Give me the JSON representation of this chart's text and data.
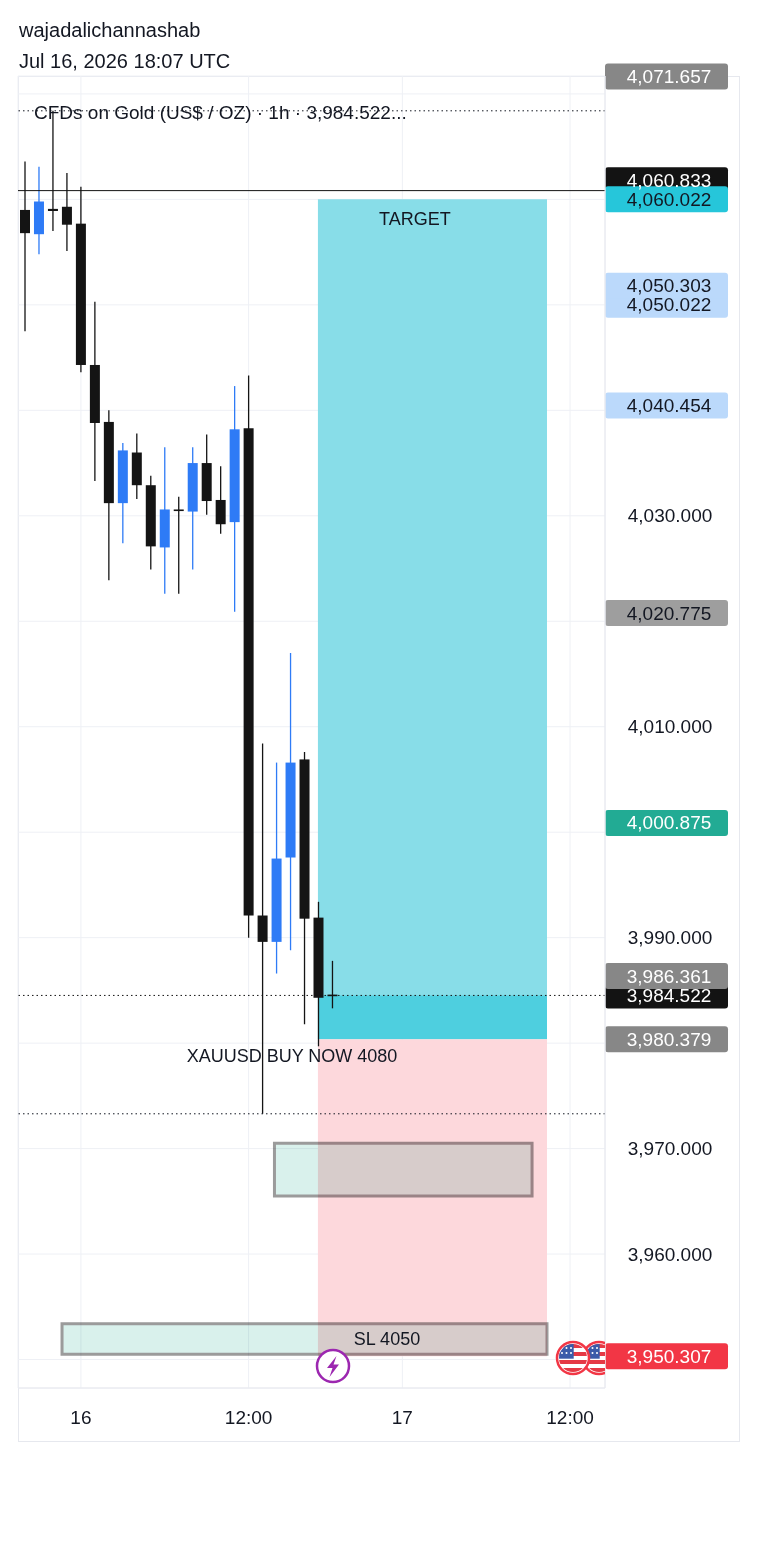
{
  "chart_data": {
    "type": "candlestick",
    "title": "wajadalichannashab",
    "subtitle": "Jul 16, 2026 18:07 UTC",
    "categories": [
      null,
      null,
      null,
      null,
      "16",
      null,
      null,
      null,
      null,
      null,
      null,
      null,
      null,
      null,
      null,
      null,
      "12:00",
      null,
      null,
      null,
      null,
      null,
      null,
      null,
      null,
      null,
      null,
      "17",
      null,
      null,
      null,
      null,
      null,
      null,
      null,
      null,
      null,
      null,
      null,
      "12:00",
      null,
      null
    ],
    "ohlc": [
      [
        4059.0,
        4063.6,
        4047.5,
        4056.8
      ],
      [
        4056.7,
        4063.1,
        4054.8,
        4059.8
      ],
      [
        4059.1,
        4068.4,
        4057.0,
        4058.9
      ],
      [
        4059.3,
        4062.5,
        4055.1,
        4057.6
      ],
      [
        4057.7,
        4061.2,
        4043.6,
        4044.3
      ],
      [
        4044.3,
        4050.3,
        4033.3,
        4038.8
      ],
      [
        4038.9,
        4040.0,
        4023.9,
        4031.2
      ],
      [
        4031.2,
        4036.9,
        4027.4,
        4036.2
      ],
      [
        4036.0,
        4037.8,
        4031.6,
        4032.9
      ],
      [
        4032.9,
        4033.8,
        4024.9,
        4027.1
      ],
      [
        4027.0,
        4036.5,
        4022.6,
        4030.6
      ],
      [
        4030.6,
        4031.8,
        4022.6,
        4030.5
      ],
      [
        4030.4,
        4036.5,
        4024.9,
        4035.0
      ],
      [
        4035.0,
        4037.7,
        4030.1,
        4031.4
      ],
      [
        4031.5,
        4034.7,
        4028.3,
        4029.2
      ],
      [
        4029.4,
        4042.3,
        4020.9,
        4038.2
      ],
      [
        4038.3,
        4043.3,
        3990.0,
        3992.1
      ],
      [
        3992.1,
        4008.4,
        3973.3,
        3989.6
      ],
      [
        3989.6,
        4006.6,
        3986.6,
        3997.5
      ],
      [
        3997.6,
        4017.0,
        3988.8,
        4006.6
      ],
      [
        4006.9,
        4007.6,
        3981.8,
        3991.8
      ],
      [
        3991.9,
        3993.4,
        3979.7,
        3984.3
      ],
      [
        3984.6,
        3987.8,
        3983.3,
        3984.522
      ],
      null,
      null,
      null,
      null,
      null,
      null,
      null,
      null,
      null,
      null,
      null,
      null,
      null,
      null,
      null,
      null,
      null,
      null,
      null
    ],
    "colors": [
      "#141414",
      "#2e7bf6",
      "#141414",
      "#141414",
      "#141414",
      "#141414",
      "#141414",
      "#2e7bf6",
      "#141414",
      "#141414",
      "#2e7bf6",
      "#141414",
      "#2e7bf6",
      "#141414",
      "#141414",
      "#2e7bf6",
      "#141414",
      "#141414",
      "#2e7bf6",
      "#2e7bf6",
      "#141414",
      "#141414",
      "#141414",
      null,
      null,
      null,
      null,
      null,
      null,
      null,
      null,
      null,
      null,
      null,
      null,
      null,
      null,
      null,
      null,
      null,
      null,
      null
    ],
    "ylim": [
      3947.3,
      4071.7
    ],
    "yticks": [
      {
        "value": 3950,
        "label": null
      },
      {
        "value": 3960,
        "label": "3,960.000"
      },
      {
        "value": 3970,
        "label": "3,970.000"
      },
      {
        "value": 3980,
        "label": null
      },
      {
        "value": 3990,
        "label": "3,990.000"
      },
      {
        "value": 4000,
        "label": null
      },
      {
        "value": 4010,
        "label": "4,010.000"
      },
      {
        "value": 4020,
        "label": null
      },
      {
        "value": 4030,
        "label": "4,030.000"
      },
      {
        "value": 4040,
        "label": null
      },
      {
        "value": 4050,
        "label": null
      },
      {
        "value": 4060,
        "label": null
      },
      {
        "value": 4070,
        "label": null
      }
    ],
    "y2lim": [
      3947.3,
      4071.7
    ],
    "y2ticks": [
      {
        "value": 3950.307,
        "label": "3,950.307"
      },
      {
        "value": 3980.379,
        "label": "3,980.379"
      },
      {
        "value": 3986.361,
        "label": "3,986.361"
      },
      {
        "value": 4000.875,
        "label": "4,000.875"
      },
      {
        "value": 4020.775,
        "label": "4,020.775"
      },
      {
        "value": 4040.454,
        "label": "4,040.454"
      },
      {
        "value": 4050.022,
        "label": "4,050.022"
      },
      {
        "value": 4060.022,
        "label": "4,060.022"
      },
      {
        "value": 4071.657,
        "label": "4,071.657"
      }
    ],
    "grid": true,
    "ref_lines": [
      {
        "axis": "y",
        "value": 4068.4,
        "color": "#131722",
        "line_style": "dotted"
      },
      {
        "axis": "y",
        "value": 4060.833,
        "label": "4,060.833",
        "color": "#131313",
        "line_style": "solid"
      },
      {
        "axis": "y",
        "value": 3984.522,
        "label": "3,984.522",
        "color": "#131313",
        "line_style": "dotted"
      },
      {
        "axis": "y",
        "value": 3973.3,
        "color": "#131722",
        "line_style": "dotted"
      }
    ],
    "bands": [
      {
        "axis": "y",
        "from": 3980.379,
        "to": 4060.022,
        "label": "TARGET",
        "color": "#88dde8"
      },
      {
        "axis": "y",
        "from": 3980.379,
        "to": 3984.522,
        "color": "#4ecfdf"
      },
      {
        "axis": "y",
        "from": 3950.307,
        "to": 3980.379,
        "color": "#fdd8dc"
      },
      {
        "axis": "y",
        "from": 3965.5,
        "to": 3970.5,
        "color": "#d9f1ec"
      },
      {
        "axis": "y",
        "from": 3950.5,
        "to": 3953.4,
        "label": "SL 4050",
        "color": "#d9f1ec"
      }
    ],
    "annotations": [
      "CFDs on Gold (US$ / OZ) · 1h · 3,984.522...",
      "XAUUSD BUY NOW 4080",
      "4,050.303"
    ]
  }
}
